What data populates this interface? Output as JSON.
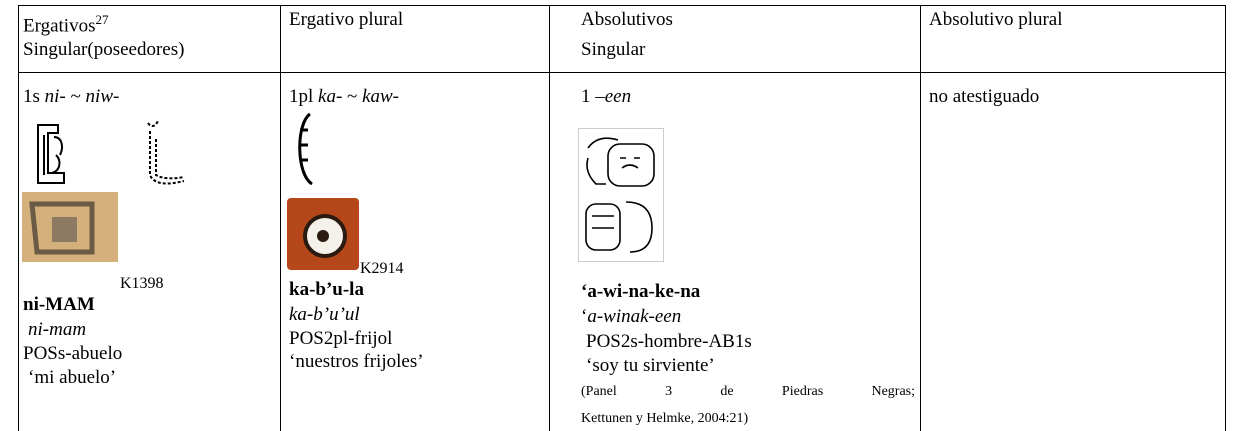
{
  "table": {
    "header": [
      {
        "line1": "Ergativos",
        "note": "27",
        "line2": "Singular(poseedores)"
      },
      {
        "line1": "Ergativo plural"
      },
      {
        "line1": "Absolutivos",
        "line2": "Singular"
      },
      {
        "line1": "Absolutivo plural"
      }
    ],
    "rows": [
      [
        {
          "person": "1s",
          "prefix": "ni-",
          "sep": "~",
          "alt": "niw-",
          "source": "K1398",
          "transliteration": "ni-MAM",
          "transcription": "ni-mam",
          "gloss": "POSs-abuelo",
          "translation": "‘mi abuelo’"
        },
        {
          "person": "1pl",
          "prefix": "ka-",
          "sep": "~",
          "alt": "kaw-",
          "source": "K2914",
          "transliteration": "ka-b’u-la",
          "transcription": "ka-b’u’ul",
          "gloss": "POS2pl-frijol",
          "translation": "‘nuestros frijoles’"
        },
        {
          "person": "1",
          "suffix": "–een",
          "transliteration": "‘a-wi-na-ke-na",
          "quote": "‘",
          "transcription": "a-winak-een",
          "gloss": "POS2s-hombre-AB1s",
          "translation": "‘soy tu sirviente’",
          "reference_line1": "(Panel 3 de Piedras Negras;",
          "reference_line2": "Kettunen y Helmke, 2004:21)"
        },
        {
          "text": "no atestiguado"
        }
      ]
    ]
  }
}
